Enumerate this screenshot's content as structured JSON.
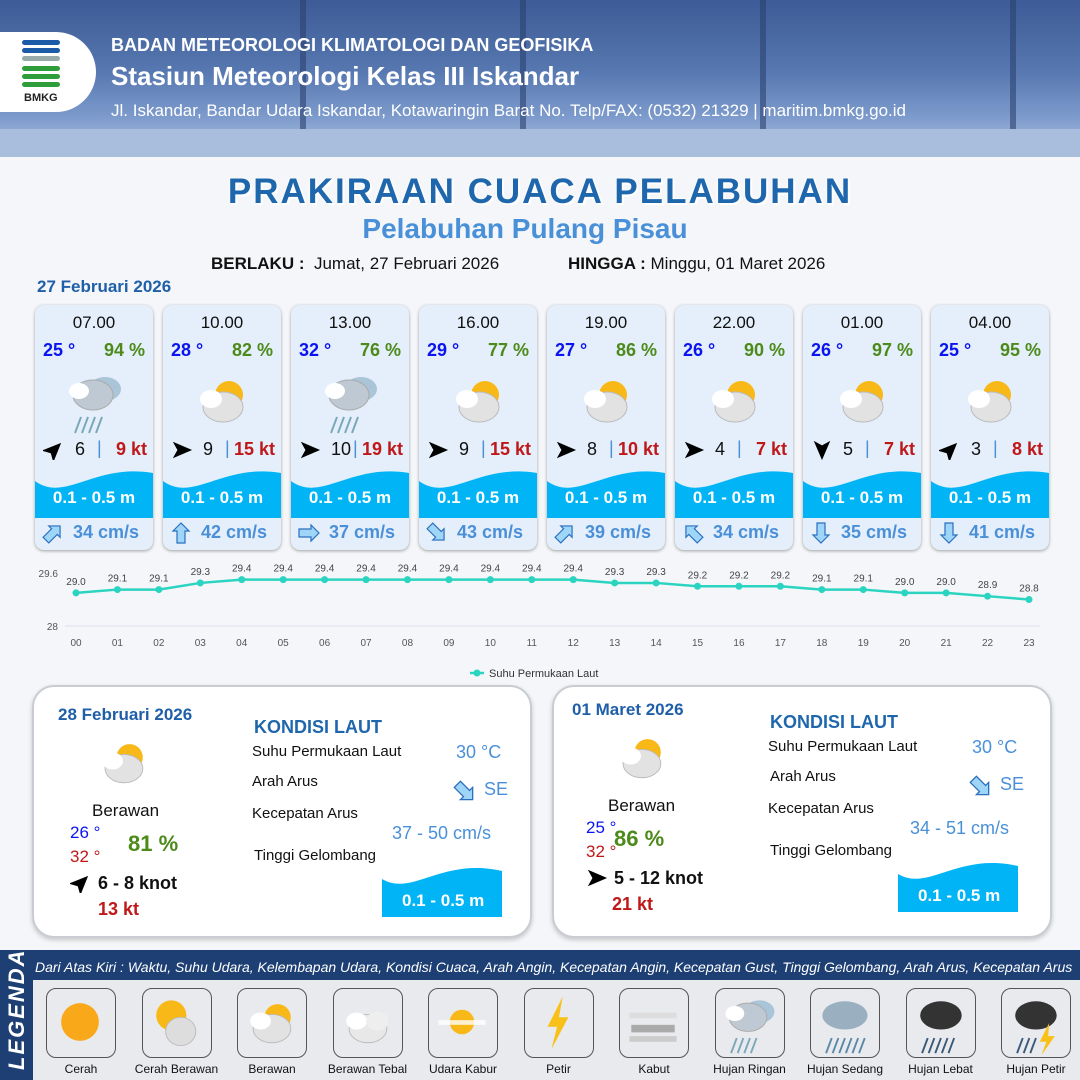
{
  "header": {
    "org": "BADAN METEOROLOGI KLIMATOLOGI DAN GEOFISIKA",
    "station": "Stasiun Meteorologi Kelas III Iskandar",
    "address": "Jl. Iskandar, Bandar Udara Iskandar, Kotawaringin Barat No. Telp/FAX: (0532) 21329 | maritim.bmkg.go.id",
    "logo_text": "BMKG"
  },
  "title": "PRAKIRAAN CUACA PELABUHAN",
  "subtitle": "Pelabuhan Pulang Pisau",
  "validity": {
    "from_label": "BERLAKU :",
    "from": "Jumat, 27 Februari 2026",
    "to_label": "HINGGA :",
    "to": "Minggu, 01 Maret 2026"
  },
  "day0": {
    "date": "27 Februari 2026",
    "forecasts": [
      {
        "time": "07.00",
        "temp": "25 °",
        "hum": "94 %",
        "icon": "hujan-ringan",
        "wind_dir": "NE",
        "wind": "6",
        "gust": "9 kt",
        "wave": "0.1 - 0.5 m",
        "cur_dir": "NE",
        "cur": "34 cm/s"
      },
      {
        "time": "10.00",
        "temp": "28 °",
        "hum": "82 %",
        "icon": "berawan",
        "wind_dir": "E",
        "wind": "9",
        "gust": "15 kt",
        "wave": "0.1 - 0.5 m",
        "cur_dir": "N",
        "cur": "42 cm/s"
      },
      {
        "time": "13.00",
        "temp": "32 °",
        "hum": "76 %",
        "icon": "hujan-ringan",
        "wind_dir": "E",
        "wind": "10",
        "gust": "19 kt",
        "wave": "0.1 - 0.5 m",
        "cur_dir": "E",
        "cur": "37 cm/s"
      },
      {
        "time": "16.00",
        "temp": "29 °",
        "hum": "77 %",
        "icon": "berawan",
        "wind_dir": "E",
        "wind": "9",
        "gust": "15 kt",
        "wave": "0.1 - 0.5 m",
        "cur_dir": "SE",
        "cur": "43 cm/s"
      },
      {
        "time": "19.00",
        "temp": "27 °",
        "hum": "86 %",
        "icon": "berawan",
        "wind_dir": "E",
        "wind": "8",
        "gust": "10 kt",
        "wave": "0.1 - 0.5 m",
        "cur_dir": "NE",
        "cur": "39 cm/s"
      },
      {
        "time": "22.00",
        "temp": "26 °",
        "hum": "90 %",
        "icon": "berawan",
        "wind_dir": "E",
        "wind": "4",
        "gust": "7 kt",
        "wave": "0.1 - 0.5 m",
        "cur_dir": "NW",
        "cur": "34 cm/s"
      },
      {
        "time": "01.00",
        "temp": "26 °",
        "hum": "97 %",
        "icon": "berawan",
        "wind_dir": "S",
        "wind": "5",
        "gust": "7 kt",
        "wave": "0.1 - 0.5 m",
        "cur_dir": "S",
        "cur": "35 cm/s"
      },
      {
        "time": "04.00",
        "temp": "25 °",
        "hum": "95 %",
        "icon": "berawan",
        "wind_dir": "NE",
        "wind": "3",
        "gust": "8 kt",
        "wave": "0.1 - 0.5 m",
        "cur_dir": "S",
        "cur": "41 cm/s"
      }
    ]
  },
  "chart_data": {
    "type": "line",
    "x": [
      "00",
      "01",
      "02",
      "03",
      "04",
      "05",
      "06",
      "07",
      "08",
      "09",
      "10",
      "11",
      "12",
      "13",
      "14",
      "15",
      "16",
      "17",
      "18",
      "19",
      "20",
      "21",
      "22",
      "23"
    ],
    "series": [
      {
        "name": "Suhu Permukaan Laut",
        "values": [
          29.0,
          29.1,
          29.1,
          29.3,
          29.4,
          29.4,
          29.4,
          29.4,
          29.4,
          29.4,
          29.4,
          29.4,
          29.4,
          29.3,
          29.3,
          29.2,
          29.2,
          29.2,
          29.1,
          29.1,
          29.0,
          29.0,
          28.9,
          28.8
        ],
        "color": "#2ad4c0"
      }
    ],
    "yticks": [
      "28",
      "29.6"
    ],
    "ylim": [
      28,
      29.6
    ],
    "legend": "bottom",
    "grid": false
  },
  "panels": [
    {
      "date": "28 Februari 2026",
      "cond": "Berawan",
      "tmin": "26 °",
      "tmax": "32 °",
      "hum": "81 %",
      "wind_dir": "NE",
      "wind": "6 - 8 knot",
      "gust": "13 kt",
      "kondisi": "KONDISI LAUT",
      "sst_label": "Suhu Permukaan Laut",
      "sst": "30 °C",
      "dir_label": "Arah Arus",
      "dir": "SE",
      "spd_label": "Kecepatan Arus",
      "spd": "37  - 50 cm/s",
      "wave_label": "Tinggi Gelombang",
      "wave": "0.1 - 0.5 m"
    },
    {
      "date": "01 Maret 2026",
      "cond": "Berawan",
      "tmin": "25 °",
      "tmax": "32 °",
      "hum": "86 %",
      "wind_dir": "E",
      "wind": "5  - 12 knot",
      "gust": "21 kt",
      "kondisi": "KONDISI LAUT",
      "sst_label": "Suhu Permukaan Laut",
      "sst": "30 °C",
      "dir_label": "Arah Arus",
      "dir": "SE",
      "spd_label": "Kecepatan Arus",
      "spd": "34 - 51 cm/s",
      "wave_label": "Tinggi Gelombang",
      "wave": "0.1 - 0.5 m"
    }
  ],
  "legend": {
    "title": "LEGENDA",
    "desc": "Dari Atas Kiri : Waktu, Suhu Udara, Kelembapan Udara, Kondisi Cuaca, Arah Angin, Kecepatan Angin, Kecepatan Gust, Tinggi Gelombang, Arah Arus, Kecepatan Arus",
    "items": [
      {
        "name": "Cerah",
        "icon": "cerah"
      },
      {
        "name": "Cerah Berawan",
        "icon": "cerah-berawan"
      },
      {
        "name": "Berawan",
        "icon": "berawan"
      },
      {
        "name": "Berawan Tebal",
        "icon": "berawan-tebal"
      },
      {
        "name": "Udara Kabur",
        "icon": "udara-kabur"
      },
      {
        "name": "Petir",
        "icon": "petir"
      },
      {
        "name": "Kabut",
        "icon": "kabut"
      },
      {
        "name": "Hujan Ringan",
        "icon": "hujan-ringan"
      },
      {
        "name": "Hujan Sedang",
        "icon": "hujan-sedang"
      },
      {
        "name": "Hujan Lebat",
        "icon": "hujan-lebat"
      },
      {
        "name": "Hujan Petir",
        "icon": "hujan-petir"
      }
    ]
  },
  "colors": {
    "accent": "#1f67ad",
    "wave": "#00b4f5",
    "temp": "#0a14f0",
    "humidity": "#4c8a1a",
    "gust": "#c01818"
  }
}
